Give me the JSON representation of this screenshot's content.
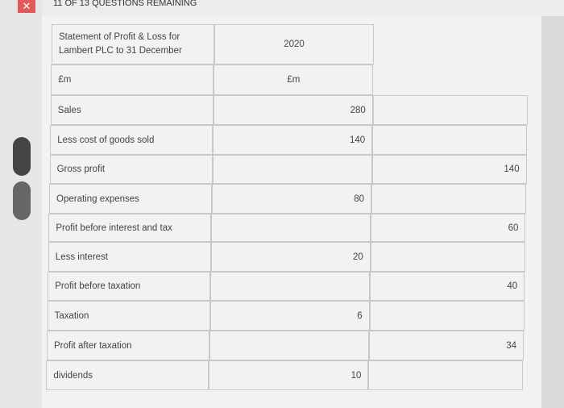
{
  "header": {
    "title": "11 OF 13 QUESTIONS REMAINING"
  },
  "table": {
    "rows": [
      [
        "Statement of Profit & Loss for Lambert PLC to 31 December",
        "2020",
        null
      ],
      [
        "£m",
        "£m",
        null
      ],
      [
        "Sales",
        280,
        null
      ],
      [
        "Less cost of goods sold",
        140,
        null
      ],
      [
        "Gross profit",
        null,
        140
      ],
      [
        "Operating expenses",
        80,
        null
      ],
      [
        "Profit before interest and tax",
        null,
        60
      ],
      [
        "Less interest",
        20,
        null
      ],
      [
        "Profit before taxation",
        null,
        40
      ],
      [
        "Taxation",
        6,
        null
      ],
      [
        "Profit after taxation",
        null,
        34
      ],
      [
        "dividends",
        10,
        null
      ]
    ]
  }
}
